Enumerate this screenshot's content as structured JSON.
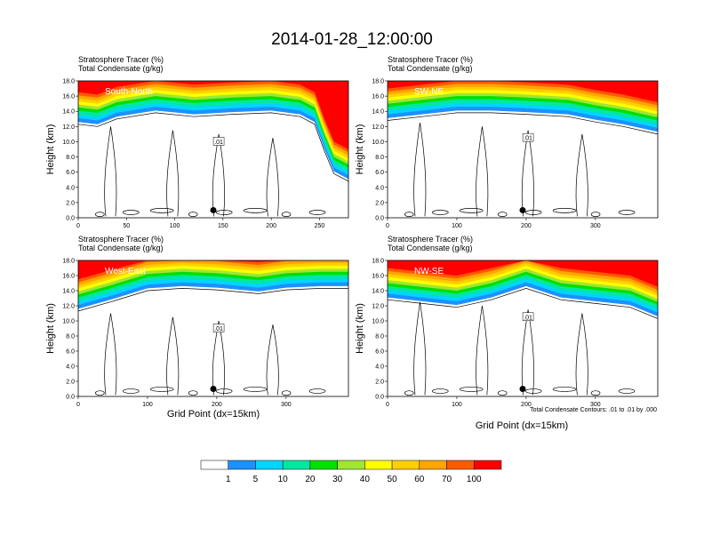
{
  "title": "2014-01-28_12:00:00",
  "panel_headers": {
    "line1": "Stratosphere Tracer   (%)",
    "line2": "Total Condensate   (g/kg)"
  },
  "y_axis_label": "Height (km)",
  "x_axis_label": "Grid Point (dx=15km)",
  "contour_note": "Total Condensate Contours: .01 to .01 by .000",
  "contour_label": ".01",
  "colors": {
    "levels": [
      "#ffffff",
      "#1e90ff",
      "#00d5ff",
      "#00e8a0",
      "#00e000",
      "#a0e632",
      "#ffff00",
      "#ffd000",
      "#ffa500",
      "#ff5a00",
      "#ff0000"
    ],
    "contour": "#000000"
  },
  "colorbar": {
    "labels": [
      "1",
      "5",
      "10",
      "20",
      "30",
      "40",
      "50",
      "60",
      "70",
      "100"
    ]
  },
  "chart_data": [
    {
      "type": "heatmap",
      "name": "South-North",
      "xlim": [
        0,
        280
      ],
      "ylim": [
        0,
        18
      ],
      "xticks": [
        "0",
        "50",
        "100",
        "150",
        "200",
        "250"
      ],
      "yticks": [
        "0.0",
        "2.0",
        "4.0",
        "6.0",
        "8.0",
        "10.0",
        "12.0",
        "14.0",
        "16.0",
        "18.0"
      ],
      "tropopause_km": [
        [
          0,
          13.5
        ],
        [
          20,
          13.2
        ],
        [
          40,
          14.2
        ],
        [
          80,
          15.0
        ],
        [
          120,
          14.5
        ],
        [
          160,
          14.8
        ],
        [
          200,
          15.0
        ],
        [
          230,
          14.5
        ],
        [
          245,
          13.5
        ],
        [
          255,
          10.0
        ],
        [
          265,
          7.0
        ],
        [
          280,
          6.0
        ]
      ],
      "marker": {
        "x": 140,
        "y": 1.0
      }
    },
    {
      "type": "heatmap",
      "name": "SW-NE",
      "xlim": [
        0,
        390
      ],
      "ylim": [
        0,
        18
      ],
      "xticks": [
        "0",
        "100",
        "200",
        "300"
      ],
      "yticks": [
        "0.0",
        "2.0",
        "4.0",
        "6.0",
        "8.0",
        "10.0",
        "12.0",
        "14.0",
        "16.0",
        "18.0"
      ],
      "tropopause_km": [
        [
          0,
          14.0
        ],
        [
          50,
          14.5
        ],
        [
          100,
          15.0
        ],
        [
          150,
          15.0
        ],
        [
          200,
          14.8
        ],
        [
          260,
          14.5
        ],
        [
          300,
          13.8
        ],
        [
          340,
          13.2
        ],
        [
          390,
          12.2
        ]
      ],
      "marker": {
        "x": 195,
        "y": 1.0
      }
    },
    {
      "type": "heatmap",
      "name": "West-East",
      "xlim": [
        0,
        390
      ],
      "ylim": [
        0,
        18
      ],
      "xticks": [
        "0",
        "100",
        "200",
        "300"
      ],
      "yticks": [
        "0.0",
        "2.0",
        "4.0",
        "6.0",
        "8.0",
        "10.0",
        "12.0",
        "14.0",
        "16.0",
        "18.0"
      ],
      "tropopause_km": [
        [
          0,
          12.5
        ],
        [
          50,
          13.8
        ],
        [
          100,
          15.2
        ],
        [
          150,
          15.5
        ],
        [
          200,
          15.3
        ],
        [
          260,
          14.8
        ],
        [
          300,
          15.3
        ],
        [
          350,
          15.5
        ],
        [
          390,
          15.5
        ]
      ],
      "marker": {
        "x": 195,
        "y": 1.0
      }
    },
    {
      "type": "heatmap",
      "name": "NW-SE",
      "xlim": [
        0,
        390
      ],
      "ylim": [
        0,
        18
      ],
      "xticks": [
        "0",
        "100",
        "200",
        "300"
      ],
      "yticks": [
        "0.0",
        "2.0",
        "4.0",
        "6.0",
        "8.0",
        "10.0",
        "12.0",
        "14.0",
        "16.0",
        "18.0"
      ],
      "tropopause_km": [
        [
          0,
          14.0
        ],
        [
          50,
          13.5
        ],
        [
          100,
          13.0
        ],
        [
          150,
          14.0
        ],
        [
          200,
          15.5
        ],
        [
          250,
          14.0
        ],
        [
          300,
          13.5
        ],
        [
          350,
          13.0
        ],
        [
          390,
          11.5
        ]
      ],
      "marker": {
        "x": 195,
        "y": 1.0
      }
    }
  ]
}
